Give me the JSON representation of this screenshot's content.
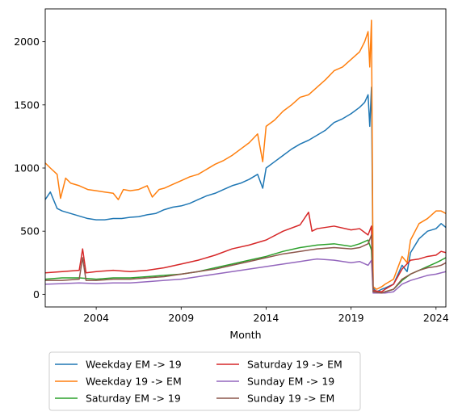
{
  "chart_data": {
    "type": "line",
    "xlabel": "Month",
    "ylabel": "",
    "title": "",
    "xlim": [
      2001.0,
      2024.58
    ],
    "ylim": [
      -100,
      2260
    ],
    "grid": false,
    "legend_placement": "bottom",
    "x_ticks": [
      {
        "value": 2004,
        "label": "2004"
      },
      {
        "value": 2009,
        "label": "2009"
      },
      {
        "value": 2014,
        "label": "2014"
      },
      {
        "value": 2019,
        "label": "2019"
      },
      {
        "value": 2024,
        "label": "2024"
      }
    ],
    "y_ticks": [
      {
        "value": 0,
        "label": "0"
      },
      {
        "value": 500,
        "label": "500"
      },
      {
        "value": 1000,
        "label": "1000"
      },
      {
        "value": 1500,
        "label": "1500"
      },
      {
        "value": 2000,
        "label": "2000"
      }
    ],
    "series": [
      {
        "name": "Weekday EM -> 19",
        "color": "#1f77b4",
        "points": [
          [
            2001.0,
            750
          ],
          [
            2001.3,
            810
          ],
          [
            2001.7,
            680
          ],
          [
            2002.0,
            660
          ],
          [
            2002.5,
            640
          ],
          [
            2003.0,
            620
          ],
          [
            2003.5,
            600
          ],
          [
            2004.0,
            590
          ],
          [
            2004.5,
            590
          ],
          [
            2005.0,
            600
          ],
          [
            2005.5,
            600
          ],
          [
            2006.0,
            610
          ],
          [
            2006.5,
            615
          ],
          [
            2007.0,
            630
          ],
          [
            2007.5,
            640
          ],
          [
            2008.0,
            670
          ],
          [
            2008.5,
            690
          ],
          [
            2009.0,
            700
          ],
          [
            2009.5,
            720
          ],
          [
            2010.0,
            750
          ],
          [
            2010.5,
            780
          ],
          [
            2011.0,
            800
          ],
          [
            2011.5,
            830
          ],
          [
            2012.0,
            860
          ],
          [
            2012.5,
            880
          ],
          [
            2013.0,
            910
          ],
          [
            2013.5,
            950
          ],
          [
            2013.8,
            840
          ],
          [
            2014.0,
            1000
          ],
          [
            2014.5,
            1050
          ],
          [
            2015.0,
            1100
          ],
          [
            2015.5,
            1150
          ],
          [
            2016.0,
            1190
          ],
          [
            2016.5,
            1220
          ],
          [
            2017.0,
            1260
          ],
          [
            2017.5,
            1300
          ],
          [
            2018.0,
            1360
          ],
          [
            2018.5,
            1390
          ],
          [
            2019.0,
            1430
          ],
          [
            2019.5,
            1480
          ],
          [
            2019.8,
            1520
          ],
          [
            2020.0,
            1580
          ],
          [
            2020.1,
            1330
          ],
          [
            2020.2,
            1640
          ],
          [
            2020.3,
            50
          ],
          [
            2020.5,
            20
          ],
          [
            2020.8,
            40
          ],
          [
            2021.0,
            50
          ],
          [
            2021.5,
            80
          ],
          [
            2022.0,
            230
          ],
          [
            2022.3,
            180
          ],
          [
            2022.5,
            330
          ],
          [
            2023.0,
            440
          ],
          [
            2023.5,
            500
          ],
          [
            2024.0,
            520
          ],
          [
            2024.3,
            560
          ],
          [
            2024.58,
            530
          ]
        ]
      },
      {
        "name": "Weekday 19 -> EM",
        "color": "#ff7f0e",
        "points": [
          [
            2001.0,
            1040
          ],
          [
            2001.3,
            1000
          ],
          [
            2001.7,
            950
          ],
          [
            2001.9,
            760
          ],
          [
            2002.2,
            920
          ],
          [
            2002.5,
            880
          ],
          [
            2003.0,
            860
          ],
          [
            2003.5,
            830
          ],
          [
            2004.0,
            820
          ],
          [
            2004.5,
            810
          ],
          [
            2005.0,
            800
          ],
          [
            2005.3,
            750
          ],
          [
            2005.6,
            830
          ],
          [
            2006.0,
            820
          ],
          [
            2006.5,
            830
          ],
          [
            2007.0,
            860
          ],
          [
            2007.3,
            770
          ],
          [
            2007.7,
            830
          ],
          [
            2008.0,
            840
          ],
          [
            2008.5,
            870
          ],
          [
            2009.0,
            900
          ],
          [
            2009.5,
            930
          ],
          [
            2010.0,
            950
          ],
          [
            2010.5,
            990
          ],
          [
            2011.0,
            1030
          ],
          [
            2011.5,
            1060
          ],
          [
            2012.0,
            1100
          ],
          [
            2012.5,
            1150
          ],
          [
            2013.0,
            1200
          ],
          [
            2013.5,
            1270
          ],
          [
            2013.8,
            1050
          ],
          [
            2014.0,
            1330
          ],
          [
            2014.5,
            1380
          ],
          [
            2015.0,
            1450
          ],
          [
            2015.5,
            1500
          ],
          [
            2016.0,
            1560
          ],
          [
            2016.5,
            1580
          ],
          [
            2017.0,
            1640
          ],
          [
            2017.5,
            1700
          ],
          [
            2018.0,
            1770
          ],
          [
            2018.5,
            1800
          ],
          [
            2019.0,
            1860
          ],
          [
            2019.5,
            1920
          ],
          [
            2019.8,
            2000
          ],
          [
            2020.0,
            2080
          ],
          [
            2020.1,
            1800
          ],
          [
            2020.2,
            2170
          ],
          [
            2020.3,
            60
          ],
          [
            2020.5,
            40
          ],
          [
            2020.8,
            60
          ],
          [
            2021.0,
            80
          ],
          [
            2021.5,
            120
          ],
          [
            2022.0,
            300
          ],
          [
            2022.3,
            250
          ],
          [
            2022.5,
            430
          ],
          [
            2023.0,
            560
          ],
          [
            2023.5,
            600
          ],
          [
            2024.0,
            660
          ],
          [
            2024.3,
            660
          ],
          [
            2024.58,
            640
          ]
        ]
      },
      {
        "name": "Saturday EM -> 19",
        "color": "#2ca02c",
        "points": [
          [
            2001.0,
            120
          ],
          [
            2002.0,
            130
          ],
          [
            2003.0,
            130
          ],
          [
            2004.0,
            120
          ],
          [
            2005.0,
            130
          ],
          [
            2006.0,
            130
          ],
          [
            2007.0,
            140
          ],
          [
            2008.0,
            150
          ],
          [
            2009.0,
            160
          ],
          [
            2010.0,
            180
          ],
          [
            2011.0,
            210
          ],
          [
            2012.0,
            240
          ],
          [
            2013.0,
            270
          ],
          [
            2014.0,
            300
          ],
          [
            2015.0,
            340
          ],
          [
            2016.0,
            370
          ],
          [
            2017.0,
            390
          ],
          [
            2018.0,
            400
          ],
          [
            2019.0,
            380
          ],
          [
            2019.5,
            400
          ],
          [
            2020.0,
            430
          ],
          [
            2020.2,
            350
          ],
          [
            2020.3,
            20
          ],
          [
            2020.8,
            10
          ],
          [
            2021.0,
            20
          ],
          [
            2021.5,
            40
          ],
          [
            2022.0,
            110
          ],
          [
            2022.5,
            160
          ],
          [
            2023.0,
            190
          ],
          [
            2023.5,
            220
          ],
          [
            2024.0,
            250
          ],
          [
            2024.3,
            270
          ],
          [
            2024.58,
            290
          ]
        ]
      },
      {
        "name": "Saturday 19 -> EM",
        "color": "#d62728",
        "points": [
          [
            2001.0,
            170
          ],
          [
            2002.0,
            180
          ],
          [
            2003.0,
            190
          ],
          [
            2003.2,
            360
          ],
          [
            2003.4,
            170
          ],
          [
            2004.0,
            180
          ],
          [
            2005.0,
            190
          ],
          [
            2006.0,
            180
          ],
          [
            2007.0,
            190
          ],
          [
            2008.0,
            210
          ],
          [
            2009.0,
            240
          ],
          [
            2010.0,
            270
          ],
          [
            2011.0,
            310
          ],
          [
            2012.0,
            360
          ],
          [
            2013.0,
            390
          ],
          [
            2014.0,
            430
          ],
          [
            2015.0,
            500
          ],
          [
            2016.0,
            550
          ],
          [
            2016.5,
            650
          ],
          [
            2016.7,
            500
          ],
          [
            2017.0,
            520
          ],
          [
            2018.0,
            540
          ],
          [
            2019.0,
            510
          ],
          [
            2019.5,
            520
          ],
          [
            2020.0,
            470
          ],
          [
            2020.2,
            540
          ],
          [
            2020.3,
            30
          ],
          [
            2020.8,
            20
          ],
          [
            2021.0,
            40
          ],
          [
            2021.5,
            80
          ],
          [
            2022.0,
            200
          ],
          [
            2022.5,
            270
          ],
          [
            2023.0,
            280
          ],
          [
            2023.5,
            300
          ],
          [
            2024.0,
            310
          ],
          [
            2024.3,
            340
          ],
          [
            2024.58,
            330
          ]
        ]
      },
      {
        "name": "Sunday EM -> 19",
        "color": "#9467bd",
        "points": [
          [
            2001.0,
            80
          ],
          [
            2002.0,
            85
          ],
          [
            2003.0,
            90
          ],
          [
            2004.0,
            85
          ],
          [
            2005.0,
            90
          ],
          [
            2006.0,
            90
          ],
          [
            2007.0,
            100
          ],
          [
            2008.0,
            110
          ],
          [
            2009.0,
            120
          ],
          [
            2010.0,
            140
          ],
          [
            2011.0,
            160
          ],
          [
            2012.0,
            180
          ],
          [
            2013.0,
            200
          ],
          [
            2014.0,
            220
          ],
          [
            2015.0,
            240
          ],
          [
            2016.0,
            260
          ],
          [
            2017.0,
            280
          ],
          [
            2018.0,
            270
          ],
          [
            2019.0,
            250
          ],
          [
            2019.5,
            260
          ],
          [
            2020.0,
            230
          ],
          [
            2020.2,
            270
          ],
          [
            2020.3,
            10
          ],
          [
            2020.8,
            10
          ],
          [
            2021.0,
            10
          ],
          [
            2021.5,
            20
          ],
          [
            2022.0,
            80
          ],
          [
            2022.5,
            110
          ],
          [
            2023.0,
            130
          ],
          [
            2023.5,
            150
          ],
          [
            2024.0,
            160
          ],
          [
            2024.3,
            170
          ],
          [
            2024.58,
            180
          ]
        ]
      },
      {
        "name": "Sunday 19 -> EM",
        "color": "#8c564b",
        "points": [
          [
            2001.0,
            110
          ],
          [
            2002.0,
            110
          ],
          [
            2003.0,
            120
          ],
          [
            2003.2,
            290
          ],
          [
            2003.4,
            110
          ],
          [
            2004.0,
            110
          ],
          [
            2005.0,
            120
          ],
          [
            2006.0,
            120
          ],
          [
            2007.0,
            130
          ],
          [
            2008.0,
            140
          ],
          [
            2009.0,
            160
          ],
          [
            2010.0,
            180
          ],
          [
            2011.0,
            200
          ],
          [
            2012.0,
            230
          ],
          [
            2013.0,
            260
          ],
          [
            2014.0,
            290
          ],
          [
            2015.0,
            320
          ],
          [
            2016.0,
            340
          ],
          [
            2017.0,
            360
          ],
          [
            2018.0,
            370
          ],
          [
            2019.0,
            360
          ],
          [
            2019.5,
            370
          ],
          [
            2020.0,
            400
          ],
          [
            2020.2,
            470
          ],
          [
            2020.3,
            20
          ],
          [
            2020.8,
            10
          ],
          [
            2021.0,
            20
          ],
          [
            2021.5,
            40
          ],
          [
            2022.0,
            120
          ],
          [
            2022.5,
            160
          ],
          [
            2023.0,
            190
          ],
          [
            2023.5,
            210
          ],
          [
            2024.0,
            220
          ],
          [
            2024.3,
            230
          ],
          [
            2024.58,
            250
          ]
        ]
      }
    ]
  }
}
